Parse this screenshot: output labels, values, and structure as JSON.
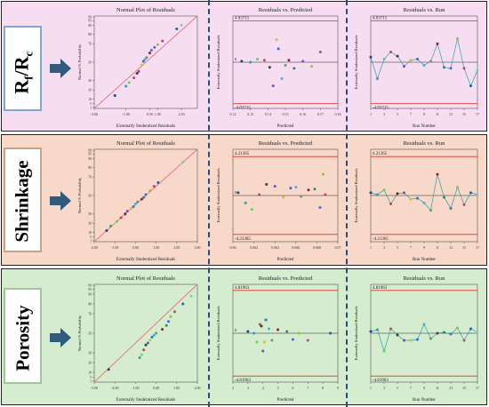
{
  "colors": {
    "pink_band": "#f6ddf2",
    "peach_band": "#f8d8c8",
    "green_band": "#d5eccf",
    "fit_line": "#e8737a",
    "limit_line": "#e03030",
    "zero_line": "#222222",
    "arrow": "#2f5b7d"
  },
  "rows": [
    {
      "label_main": "R",
      "label_sub1": "f",
      "label_sep": "/R",
      "label_sub2": "c",
      "icon": "right-arrow-icon"
    },
    {
      "label": "Shrinkage",
      "icon": "right-arrow-icon"
    },
    {
      "label": "Porosity",
      "icon": "right-arrow-icon"
    }
  ],
  "chart_data": [
    {
      "id": "rf-normal",
      "type": "scatter",
      "title": "Normal Plot of Residuals",
      "xlabel": "Externally Studentized Residuals",
      "ylabel": "Normal % Probability",
      "xlim": [
        -3.0,
        3.5
      ],
      "ylim": [
        0,
        100
      ],
      "xticks": [
        "-3.00",
        "-1.00",
        "0.50",
        "1.00",
        "2.50"
      ],
      "xtick_values": [
        -3.0,
        -1.0,
        0.5,
        1.0,
        2.5
      ],
      "yticks": [
        "1",
        "5",
        "10",
        "20",
        "30",
        "50",
        "70",
        "80",
        "90",
        "95",
        "99"
      ],
      "ytick_values": [
        1,
        5,
        10,
        20,
        30,
        50,
        70,
        80,
        90,
        95,
        99
      ],
      "fit": [
        [
          -3.0,
          0
        ],
        [
          3.5,
          100
        ]
      ],
      "x": [
        -1.7,
        -1.0,
        -0.8,
        -0.5,
        -0.3,
        -0.2,
        0.0,
        0.1,
        0.2,
        0.3,
        0.5,
        0.6,
        0.8,
        1.0,
        1.3,
        2.2,
        2.5
      ],
      "y": [
        14,
        24,
        28,
        33,
        38,
        40,
        47,
        51,
        53,
        55,
        60,
        63,
        66,
        69,
        73,
        86,
        90
      ]
    },
    {
      "id": "rf-pred",
      "type": "scatter",
      "title": "Residuals vs. Predicted",
      "xlabel": "Predicted",
      "ylabel": "Externally Studentized Residuals",
      "xlim": [
        0.12,
        0.18
      ],
      "ylim": [
        -4.5,
        4.5
      ],
      "xticks": [
        "0.12",
        "0.13",
        "0.14",
        "0.15",
        "0.16",
        "0.17",
        "0.18"
      ],
      "xtick_values": [
        0.12,
        0.13,
        0.14,
        0.15,
        0.16,
        0.17,
        0.18
      ],
      "limits": [
        4.03715,
        -4.03715
      ],
      "limit_labels": [
        "4.03715",
        "-4.03715"
      ],
      "zero_label": "0",
      "x": [
        0.125,
        0.13,
        0.134,
        0.138,
        0.141,
        0.143,
        0.145,
        0.146,
        0.148,
        0.15,
        0.152,
        0.155,
        0.16,
        0.165,
        0.17
      ],
      "y": [
        0.1,
        0.0,
        0.3,
        0.2,
        -0.5,
        -2.3,
        2.2,
        1.3,
        -1.6,
        -0.3,
        0.2,
        -0.6,
        0.1,
        -0.4,
        1.0
      ]
    },
    {
      "id": "rf-run",
      "type": "line",
      "title": "Residuals vs. Run",
      "xlabel": "Run Number",
      "ylabel": "Externally Studentized Residuals",
      "xlim": [
        1,
        17
      ],
      "ylim": [
        -4.5,
        4.5
      ],
      "xticks": [
        "1",
        "3",
        "5",
        "7",
        "9",
        "11",
        "13",
        "15",
        "17"
      ],
      "xtick_values": [
        1,
        3,
        5,
        7,
        9,
        11,
        13,
        15,
        17
      ],
      "limits": [
        4.03715,
        -4.03715
      ],
      "limit_labels": [
        "4.03715",
        "-4.03715"
      ],
      "x": [
        1,
        2,
        3,
        4,
        5,
        6,
        7,
        8,
        9,
        10,
        11,
        12,
        13,
        14,
        15,
        16,
        17
      ],
      "y": [
        0.5,
        -1.6,
        0.3,
        1.0,
        0.6,
        -0.4,
        0.2,
        0.3,
        -0.3,
        0.1,
        1.8,
        -0.5,
        -0.6,
        2.3,
        -0.6,
        -2.3,
        -0.8
      ]
    },
    {
      "id": "sh-normal",
      "type": "scatter",
      "title": "Normal Plot of Residuals",
      "xlabel": "Externally Studentized Residuals",
      "ylabel": "Normal % Probability",
      "xlim": [
        -2.0,
        3.0
      ],
      "ylim": [
        0,
        100
      ],
      "xticks": [
        "-2.00",
        "-1.00",
        "0.00",
        "1.00",
        "2.00",
        "3.00"
      ],
      "xtick_values": [
        -2.0,
        -1.0,
        0.0,
        1.0,
        2.0,
        3.0
      ],
      "yticks": [
        "1",
        "5",
        "10",
        "20",
        "30",
        "50",
        "70",
        "80",
        "90",
        "95",
        "99"
      ],
      "ytick_values": [
        1,
        5,
        10,
        20,
        30,
        50,
        70,
        80,
        90,
        95,
        99
      ],
      "fit": [
        [
          -2.0,
          0
        ],
        [
          3.0,
          100
        ]
      ],
      "x": [
        -1.4,
        -1.2,
        -0.9,
        -0.7,
        -0.5,
        -0.4,
        -0.2,
        -0.1,
        0.0,
        0.1,
        0.3,
        0.4,
        0.5,
        0.7,
        0.9,
        1.1,
        2.3
      ],
      "y": [
        12,
        17,
        22,
        26,
        30,
        33,
        36,
        38,
        41,
        43,
        46,
        48,
        51,
        55,
        60,
        64,
        86
      ]
    },
    {
      "id": "sh-pred",
      "type": "scatter",
      "title": "Residuals vs. Predicted",
      "xlabel": "Predicted",
      "ylabel": "Externally Studentized Residuals",
      "xlim": [
        0.06,
        0.07
      ],
      "ylim": [
        -5.0,
        5.0
      ],
      "xticks": [
        "0.06",
        "0.062",
        "0.064",
        "0.066",
        "0.068",
        "0.07"
      ],
      "xtick_values": [
        0.06,
        0.062,
        0.064,
        0.066,
        0.068,
        0.07
      ],
      "limits": [
        4.21365,
        -4.21365
      ],
      "limit_labels": [
        "4.21365",
        "-4.21365"
      ],
      "zero_label": "0",
      "x": [
        0.0605,
        0.0612,
        0.0618,
        0.0625,
        0.0632,
        0.064,
        0.0648,
        0.0655,
        0.066,
        0.0665,
        0.0672,
        0.0678,
        0.0683,
        0.0686,
        0.0688
      ],
      "y": [
        0.3,
        -0.8,
        -1.5,
        0.1,
        1.2,
        1.0,
        -0.2,
        0.8,
        0.9,
        -0.1,
        0.6,
        0.7,
        -1.3,
        2.3,
        0.1
      ]
    },
    {
      "id": "sh-run",
      "type": "line",
      "title": "Residuals vs. Run",
      "xlabel": "Run Number",
      "ylabel": "Externally Studentized Residuals",
      "xlim": [
        1,
        17
      ],
      "ylim": [
        -5.0,
        5.0
      ],
      "xticks": [
        "1",
        "3",
        "5",
        "7",
        "9",
        "11",
        "13",
        "15",
        "17"
      ],
      "xtick_values": [
        1,
        3,
        5,
        7,
        9,
        11,
        13,
        15,
        17
      ],
      "limits": [
        4.21365,
        -4.21365
      ],
      "limit_labels": [
        "4.21365",
        "-4.21365"
      ],
      "x": [
        1,
        2,
        3,
        4,
        5,
        6,
        7,
        8,
        9,
        10,
        11,
        12,
        13,
        14,
        15,
        16,
        17
      ],
      "y": [
        0.3,
        0.1,
        0.6,
        -0.9,
        0.2,
        0.3,
        -0.4,
        -0.3,
        -0.8,
        -1.6,
        2.3,
        -0.2,
        -1.4,
        0.9,
        -1.0,
        0.3,
        0.1
      ]
    },
    {
      "id": "po-normal",
      "type": "scatter",
      "title": "Normal Plot of Residuals",
      "xlabel": "Externally Studentized Residuals",
      "ylabel": "Normal % Probability",
      "xlim": [
        -3.0,
        2.0
      ],
      "ylim": [
        0,
        100
      ],
      "xticks": [
        "-3.00",
        "-2.00",
        "-1.00",
        "0.00",
        "1.00",
        "2.00"
      ],
      "xtick_values": [
        -3.0,
        -2.0,
        -1.0,
        0.0,
        1.0,
        2.0
      ],
      "yticks": [
        "1",
        "5",
        "10",
        "20",
        "30",
        "50",
        "70",
        "80",
        "90",
        "95",
        "99"
      ],
      "ytick_values": [
        1,
        5,
        10,
        20,
        30,
        50,
        70,
        80,
        90,
        95,
        99
      ],
      "fit": [
        [
          -3.0,
          0
        ],
        [
          2.0,
          100
        ]
      ],
      "x": [
        -2.3,
        -0.8,
        -0.7,
        -0.6,
        -0.5,
        -0.4,
        -0.3,
        -0.2,
        -0.1,
        0.0,
        0.3,
        0.5,
        0.6,
        0.7,
        0.9,
        1.3,
        1.7
      ],
      "y": [
        13,
        25,
        28,
        33,
        38,
        40,
        43,
        46,
        48,
        50,
        54,
        58,
        62,
        67,
        72,
        80,
        88
      ]
    },
    {
      "id": "po-pred",
      "type": "scatter",
      "title": "Residuals vs. Predicted",
      "xlabel": "Predicted",
      "ylabel": "Externally Studentized Residuals",
      "xlim": [
        2,
        9
      ],
      "ylim": [
        -5.5,
        5.5
      ],
      "xticks": [
        "2",
        "3",
        "4",
        "5",
        "6",
        "7",
        "8",
        "9"
      ],
      "xtick_values": [
        2,
        3,
        4,
        5,
        6,
        7,
        8,
        9
      ],
      "limits": [
        4.81963,
        -4.81963
      ],
      "limit_labels": [
        "4.81963",
        "-4.81963"
      ],
      "zero_label": "0",
      "x": [
        3.0,
        3.4,
        3.6,
        3.8,
        3.9,
        4.0,
        4.1,
        4.2,
        4.4,
        4.6,
        5.0,
        5.6,
        6.0,
        6.4,
        7.0,
        8.5
      ],
      "y": [
        0.2,
        0.0,
        -1.0,
        1.0,
        0.8,
        -2.0,
        -1.0,
        1.5,
        0.5,
        -0.8,
        0.4,
        0.2,
        -0.7,
        0.0,
        -0.8,
        0.0
      ]
    },
    {
      "id": "po-run",
      "type": "line",
      "title": "Residuals vs. Run",
      "xlabel": "Run Number",
      "ylabel": "Externally Studentized Residuals",
      "xlim": [
        1,
        17
      ],
      "ylim": [
        -5.5,
        5.5
      ],
      "xticks": [
        "1",
        "3",
        "5",
        "7",
        "9",
        "11",
        "13",
        "15",
        "17"
      ],
      "xtick_values": [
        1,
        3,
        5,
        7,
        9,
        11,
        13,
        15,
        17
      ],
      "limits": [
        4.81963,
        -4.81963
      ],
      "limit_labels": [
        "4.81963",
        "-4.81963"
      ],
      "x": [
        1,
        2,
        3,
        4,
        5,
        6,
        7,
        8,
        9,
        10,
        11,
        12,
        13,
        14,
        15,
        16,
        17
      ],
      "y": [
        0.2,
        0.4,
        -2.0,
        0.5,
        -0.2,
        -0.8,
        -0.8,
        -0.7,
        1.0,
        -0.6,
        0.0,
        0.1,
        -0.1,
        0.6,
        -0.8,
        0.5,
        0.1
      ]
    }
  ]
}
